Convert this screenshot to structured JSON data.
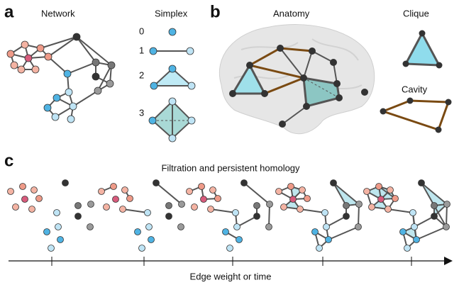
{
  "panel_a": {
    "letter": "a",
    "network_title": "Network",
    "simplex_title": "Simplex",
    "simplex_orders": [
      "0",
      "1",
      "2",
      "3"
    ]
  },
  "panel_b": {
    "letter": "b",
    "anatomy_title": "Anatomy",
    "clique_title": "Clique",
    "cavity_title": "Cavity"
  },
  "panel_c": {
    "letter": "c",
    "title": "Filtration and persistent homology",
    "axis_label": "Edge weight or time"
  }
}
